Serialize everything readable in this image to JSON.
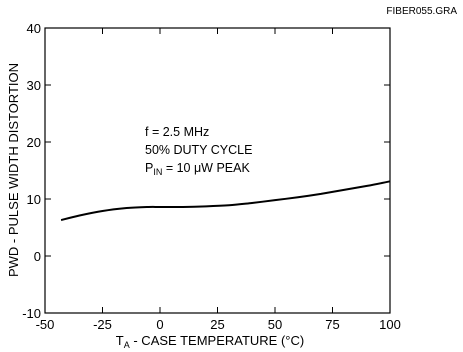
{
  "figure_id": "FIBER055.GRA",
  "chart_data": {
    "type": "line",
    "title": "",
    "xlabel": {
      "main": "T",
      "sub": "A",
      "rest": " - CASE TEMPERATURE (°C)"
    },
    "ylabel": "PWD - PULSE WIDTH DISTORTION",
    "xlim": [
      -50,
      100
    ],
    "ylim": [
      -10,
      40
    ],
    "x_ticks": [
      -50,
      -25,
      0,
      25,
      50,
      75,
      100
    ],
    "y_ticks": [
      -10,
      0,
      10,
      20,
      30,
      40
    ],
    "grid": false,
    "annotations": [
      {
        "text": "f = 2.5 MHz"
      },
      {
        "text": "50% DUTY CYCLE"
      },
      {
        "main": "P",
        "sub": "IN",
        "rest": " = 10 μW PEAK"
      }
    ],
    "series": [
      {
        "x": [
          -43,
          -35,
          -25,
          -15,
          -5,
          0,
          10,
          20,
          30,
          40,
          50,
          60,
          70,
          80,
          90,
          100
        ],
        "y": [
          6.3,
          7.1,
          7.9,
          8.4,
          8.6,
          8.6,
          8.6,
          8.7,
          8.9,
          9.3,
          9.8,
          10.3,
          10.9,
          11.6,
          12.3,
          13.1
        ]
      }
    ]
  }
}
